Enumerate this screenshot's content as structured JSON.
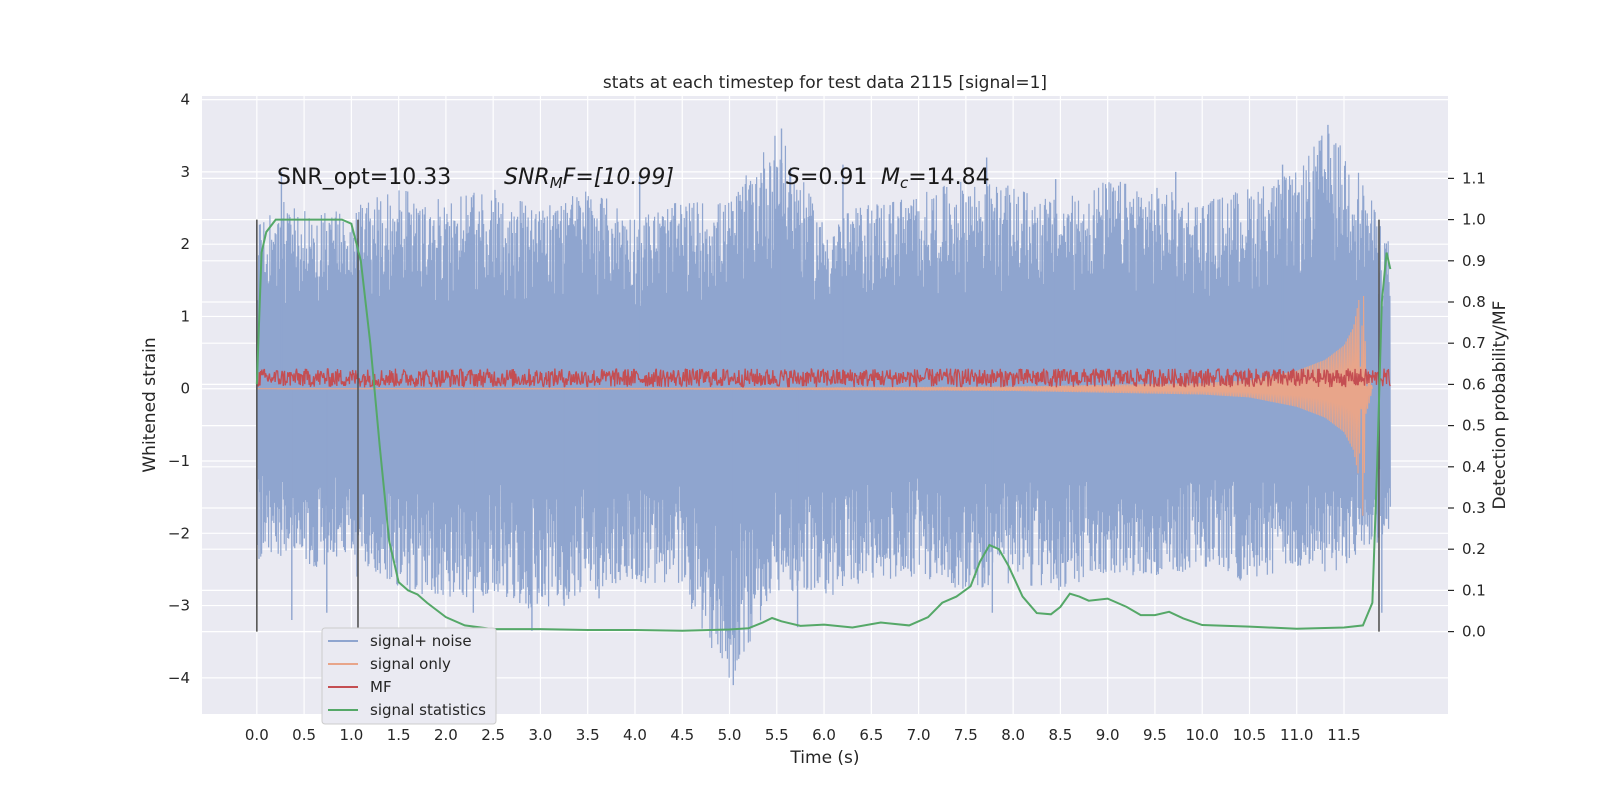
{
  "chart_data": {
    "type": "line",
    "title": "stats at each timestep for test data 2115 [signal=1]",
    "xlabel": "Time (s)",
    "ylabel": "Whitened strain",
    "ylabel_right": "Detection probability/MF",
    "xlim": [
      -0.58,
      12.6
    ],
    "ylim": [
      -4.5,
      4.05
    ],
    "ylim_right": [
      -0.2,
      1.3
    ],
    "x_ticks": [
      "0.0",
      "0.5",
      "1.0",
      "1.5",
      "2.0",
      "2.5",
      "3.0",
      "3.5",
      "4.0",
      "4.5",
      "5.0",
      "5.5",
      "6.0",
      "6.5",
      "7.0",
      "7.5",
      "8.0",
      "8.5",
      "9.0",
      "9.5",
      "10.0",
      "10.5",
      "11.0",
      "11.5"
    ],
    "y_ticks": [
      "−4",
      "−3",
      "−2",
      "−1",
      "0",
      "1",
      "2",
      "3",
      "4"
    ],
    "y_ticks_right": [
      "0.0",
      "0.1",
      "0.2",
      "0.3",
      "0.4",
      "0.5",
      "0.6",
      "0.7",
      "0.8",
      "0.9",
      "1.0",
      "1.1"
    ],
    "grid": true,
    "legend_position": "lower-left",
    "annotations": {
      "snr_opt": {
        "prefix": "SNR_opt=",
        "value": "10.33"
      },
      "snr_mf": {
        "sym": "SNR",
        "sub": "M",
        "tail": "F=[10.99]"
      },
      "s": {
        "sym": "S",
        "value": "=0.91"
      },
      "mc": {
        "sym": "M",
        "sub": "c",
        "value": "=14.84"
      }
    },
    "vertical_markers_x": [
      0.0,
      1.07,
      11.87
    ],
    "series": [
      {
        "name": "signal+ noise",
        "color": "#8fa5cf",
        "axis": "left",
        "envelope_points": [
          [
            0.0,
            -2.4,
            2.4
          ],
          [
            0.3,
            -2.3,
            2.6
          ],
          [
            0.6,
            -2.5,
            2.4
          ],
          [
            1.0,
            -2.3,
            2.5
          ],
          [
            1.5,
            -2.8,
            2.8
          ],
          [
            2.0,
            -2.9,
            2.6
          ],
          [
            2.5,
            -2.9,
            2.8
          ],
          [
            3.0,
            -3.1,
            2.5
          ],
          [
            3.5,
            -2.8,
            2.8
          ],
          [
            4.0,
            -2.7,
            2.4
          ],
          [
            4.5,
            -2.8,
            2.6
          ],
          [
            5.0,
            -4.1,
            2.6
          ],
          [
            5.5,
            -2.8,
            3.6
          ],
          [
            6.0,
            -2.9,
            2.3
          ],
          [
            6.5,
            -2.7,
            2.6
          ],
          [
            7.0,
            -2.6,
            2.7
          ],
          [
            7.5,
            -2.8,
            2.9
          ],
          [
            8.0,
            -2.7,
            2.8
          ],
          [
            8.5,
            -2.8,
            2.6
          ],
          [
            9.0,
            -2.6,
            2.9
          ],
          [
            9.5,
            -2.6,
            2.8
          ],
          [
            10.0,
            -2.5,
            2.6
          ],
          [
            10.5,
            -2.7,
            2.8
          ],
          [
            11.0,
            -2.5,
            3.0
          ],
          [
            11.3,
            -2.6,
            3.6
          ],
          [
            11.6,
            -2.4,
            3.2
          ],
          [
            11.99,
            -2.0,
            2.0
          ]
        ],
        "spikes": [
          [
            0.37,
            -3.2
          ],
          [
            0.74,
            -3.1
          ],
          [
            1.06,
            -2.6
          ],
          [
            2.29,
            -3.1
          ],
          [
            2.91,
            -3.35
          ],
          [
            3.25,
            -3.0
          ],
          [
            3.62,
            -2.9
          ],
          [
            5.04,
            -4.1
          ],
          [
            5.55,
            3.6
          ],
          [
            5.72,
            -3.3
          ],
          [
            7.78,
            -3.1
          ],
          [
            11.33,
            3.65
          ],
          [
            11.9,
            -3.1
          ],
          [
            0.26,
            3.0
          ],
          [
            4.05,
            2.95
          ],
          [
            6.2,
            3.1
          ],
          [
            7.72,
            3.2
          ],
          [
            8.45,
            2.9
          ],
          [
            9.72,
            3.0
          ],
          [
            10.85,
            3.1
          ]
        ]
      },
      {
        "name": "signal only",
        "color": "#e8a58a",
        "axis": "left",
        "points": [
          [
            0.0,
            0.0
          ],
          [
            5.0,
            0.01
          ],
          [
            8.0,
            0.03
          ],
          [
            10.0,
            0.08
          ],
          [
            10.5,
            0.12
          ],
          [
            11.0,
            0.25
          ],
          [
            11.3,
            0.4
          ],
          [
            11.5,
            0.6
          ],
          [
            11.6,
            0.85
          ],
          [
            11.66,
            1.25
          ],
          [
            11.7,
            -1.55
          ],
          [
            11.75,
            0.3
          ],
          [
            11.8,
            0.0
          ]
        ]
      },
      {
        "name": "MF",
        "color": "#c44e52",
        "axis": "left",
        "level": 0.15,
        "amplitude": 0.13
      },
      {
        "name": "signal statistics",
        "color": "#55a868",
        "axis": "right",
        "points": [
          [
            0.0,
            0.6
          ],
          [
            0.05,
            0.92
          ],
          [
            0.1,
            0.97
          ],
          [
            0.2,
            1.0
          ],
          [
            0.5,
            1.0
          ],
          [
            0.9,
            1.0
          ],
          [
            1.0,
            0.99
          ],
          [
            1.1,
            0.9
          ],
          [
            1.2,
            0.7
          ],
          [
            1.3,
            0.45
          ],
          [
            1.4,
            0.22
          ],
          [
            1.5,
            0.12
          ],
          [
            1.6,
            0.1
          ],
          [
            1.7,
            0.09
          ],
          [
            1.8,
            0.07
          ],
          [
            2.0,
            0.035
          ],
          [
            2.2,
            0.015
          ],
          [
            2.5,
            0.006
          ],
          [
            3.0,
            0.006
          ],
          [
            3.5,
            0.004
          ],
          [
            4.0,
            0.004
          ],
          [
            4.5,
            0.002
          ],
          [
            5.0,
            0.005
          ],
          [
            5.2,
            0.008
          ],
          [
            5.35,
            0.022
          ],
          [
            5.45,
            0.033
          ],
          [
            5.55,
            0.025
          ],
          [
            5.75,
            0.014
          ],
          [
            6.0,
            0.017
          ],
          [
            6.3,
            0.01
          ],
          [
            6.6,
            0.022
          ],
          [
            6.9,
            0.015
          ],
          [
            7.1,
            0.035
          ],
          [
            7.25,
            0.07
          ],
          [
            7.4,
            0.085
          ],
          [
            7.55,
            0.11
          ],
          [
            7.65,
            0.17
          ],
          [
            7.75,
            0.21
          ],
          [
            7.85,
            0.2
          ],
          [
            7.95,
            0.16
          ],
          [
            8.1,
            0.085
          ],
          [
            8.25,
            0.045
          ],
          [
            8.4,
            0.042
          ],
          [
            8.5,
            0.06
          ],
          [
            8.6,
            0.092
          ],
          [
            8.7,
            0.085
          ],
          [
            8.8,
            0.075
          ],
          [
            9.0,
            0.08
          ],
          [
            9.2,
            0.06
          ],
          [
            9.35,
            0.04
          ],
          [
            9.5,
            0.04
          ],
          [
            9.65,
            0.048
          ],
          [
            9.8,
            0.032
          ],
          [
            10.0,
            0.016
          ],
          [
            10.5,
            0.012
          ],
          [
            11.0,
            0.007
          ],
          [
            11.5,
            0.01
          ],
          [
            11.7,
            0.015
          ],
          [
            11.8,
            0.07
          ],
          [
            11.85,
            0.4
          ],
          [
            11.9,
            0.8
          ],
          [
            11.95,
            0.92
          ],
          [
            11.99,
            0.88
          ]
        ]
      }
    ]
  },
  "colors": {
    "background": "#eaeaf2",
    "grid": "#ffffff",
    "marker_line": "#555555"
  }
}
